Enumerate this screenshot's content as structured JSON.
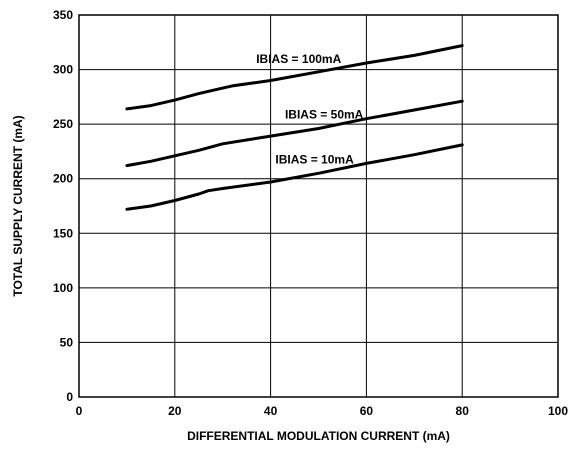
{
  "chart_data": {
    "type": "line",
    "xlabel": "DIFFERENTIAL MODULATION CURRENT (mA)",
    "ylabel": "TOTAL SUPPLY CURRENT (mA)",
    "xlim": [
      0,
      100
    ],
    "ylim": [
      0,
      350
    ],
    "xticks": [
      0,
      20,
      40,
      60,
      80,
      100
    ],
    "yticks": [
      0,
      50,
      100,
      150,
      200,
      250,
      300,
      350
    ],
    "grid": true,
    "series": [
      {
        "name": "IBIAS = 100mA",
        "x": [
          10,
          15,
          20,
          25,
          30,
          32,
          40,
          50,
          60,
          70,
          80
        ],
        "y": [
          264,
          267,
          272,
          278,
          283,
          285,
          290,
          298,
          306,
          313,
          322
        ]
      },
      {
        "name": "IBIAS = 50mA",
        "x": [
          10,
          15,
          20,
          25,
          30,
          40,
          50,
          60,
          70,
          80
        ],
        "y": [
          212,
          216,
          221,
          226,
          232,
          239,
          246,
          255,
          263,
          271
        ]
      },
      {
        "name": "IBIAS = 10mA",
        "x": [
          10,
          15,
          20,
          25,
          27,
          30,
          40,
          50,
          60,
          70,
          80
        ],
        "y": [
          172,
          175,
          180,
          186,
          189,
          191,
          197,
          205,
          214,
          222,
          231
        ]
      }
    ],
    "labels": [
      {
        "text": "IBIAS = 100mA",
        "x": 37,
        "y": 306
      },
      {
        "text": "IBIAS = 50mA",
        "x": 43,
        "y": 255
      },
      {
        "text": "IBIAS = 10mA",
        "x": 41,
        "y": 214
      }
    ]
  }
}
